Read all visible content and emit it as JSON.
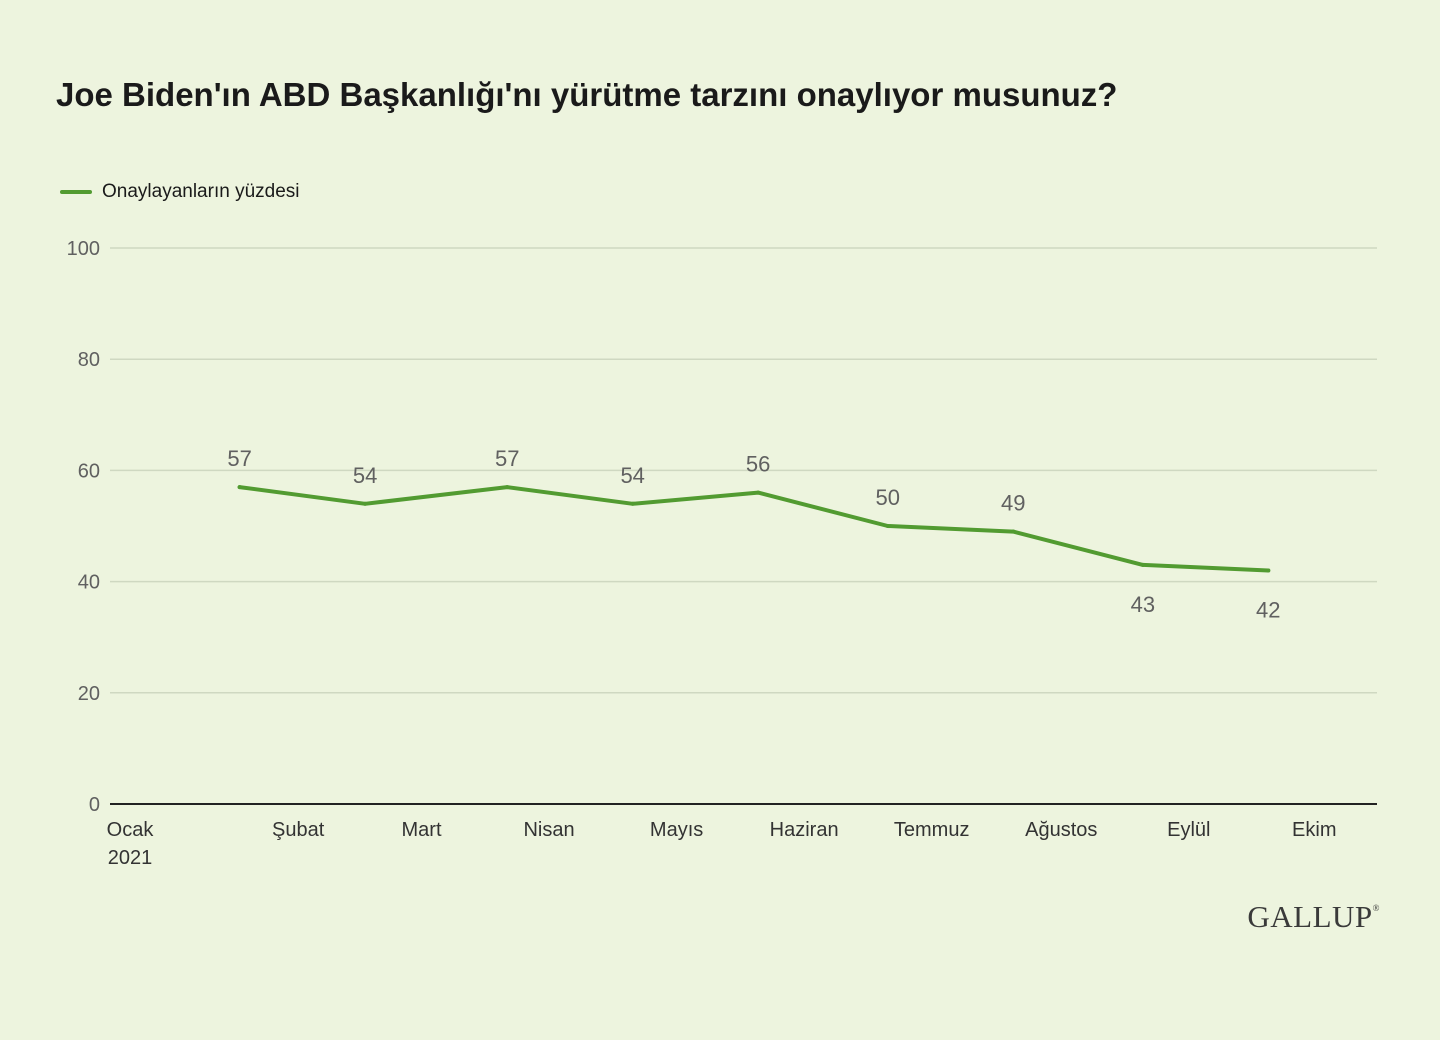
{
  "title": "Joe Biden'ın ABD Başkanlığı'nı yürütme tarzını onaylıyor musunuz?",
  "legend": {
    "label": "Onaylayanların yüzdesi"
  },
  "brand": {
    "name": "GALLUP",
    "mark": "®"
  },
  "colors": {
    "background": "#edf4de",
    "line": "#529b31",
    "grid": "#cfd8c1",
    "axis": "#222222",
    "label": "#606060"
  },
  "chart_data": {
    "type": "line",
    "title": "Joe Biden'ın ABD Başkanlığı'nı yürütme tarzını onaylıyor musunuz?",
    "xlabel": "",
    "ylabel": "",
    "ylim": [
      0,
      100
    ],
    "yticks": [
      0,
      20,
      40,
      60,
      80,
      100
    ],
    "grid": true,
    "legend_position": "top-left",
    "x_axis": {
      "start_date": "2021-01-01",
      "end_date": "2021-10-31",
      "ticks": [
        {
          "label": "Ocak",
          "sublabel": "2021",
          "date": "2021-01-01"
        },
        {
          "label": "Şubat",
          "date": "2021-02-01"
        },
        {
          "label": "Mart",
          "date": "2021-03-01"
        },
        {
          "label": "Nisan",
          "date": "2021-04-01"
        },
        {
          "label": "Mayıs",
          "date": "2021-05-01"
        },
        {
          "label": "Haziran",
          "date": "2021-06-01"
        },
        {
          "label": "Temmuz",
          "date": "2021-07-01"
        },
        {
          "label": "Ağustos",
          "date": "2021-08-01"
        },
        {
          "label": "Eylül",
          "date": "2021-09-01"
        },
        {
          "label": "Ekim",
          "date": "2021-10-01"
        }
      ]
    },
    "series": [
      {
        "name": "Onaylayanların yüzdesi",
        "color": "#529b31",
        "points": [
          {
            "date": "2021-02-01",
            "value": 57,
            "label_position": "above"
          },
          {
            "date": "2021-03-03",
            "value": 54,
            "label_position": "above"
          },
          {
            "date": "2021-04-06",
            "value": 57,
            "label_position": "above"
          },
          {
            "date": "2021-05-06",
            "value": 54,
            "label_position": "above"
          },
          {
            "date": "2021-06-05",
            "value": 56,
            "label_position": "above"
          },
          {
            "date": "2021-07-06",
            "value": 50,
            "label_position": "above"
          },
          {
            "date": "2021-08-05",
            "value": 49,
            "label_position": "above"
          },
          {
            "date": "2021-09-05",
            "value": 43,
            "label_position": "below"
          },
          {
            "date": "2021-10-05",
            "value": 42,
            "label_position": "below"
          }
        ]
      }
    ]
  }
}
